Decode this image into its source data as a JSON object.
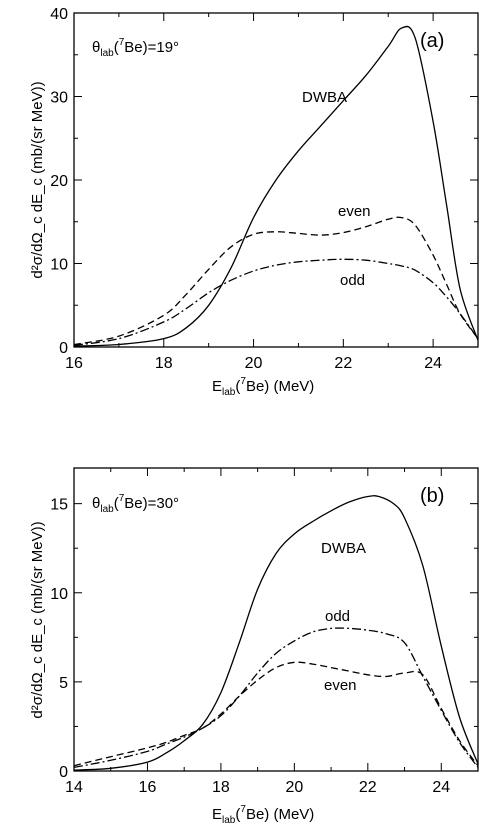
{
  "chart_data": [
    {
      "type": "line",
      "panel_label": "(a)",
      "condition": {
        "main": "θ",
        "sub": "lab",
        "sup": "7",
        "rest": "Be)=19°"
      },
      "xlabel": {
        "main": "E",
        "sub": "lab",
        "sup": "7",
        "rest": "Be)  (MeV)"
      },
      "ylabel": "d²σ/dΩ_c dE_c  (mb/(sr MeV))",
      "xlim": [
        16,
        25
      ],
      "ylim": [
        0,
        40
      ],
      "xticks": [
        16,
        18,
        20,
        22,
        24
      ],
      "yticks": [
        0,
        10,
        20,
        30,
        40
      ],
      "series": [
        {
          "name": "DWBA",
          "style": "solid",
          "x": [
            16,
            17,
            18,
            18.5,
            19,
            19.5,
            20,
            20.5,
            21,
            21.5,
            22,
            22.5,
            23,
            23.3,
            23.6,
            24,
            24.3,
            24.6,
            25
          ],
          "y": [
            0.1,
            0.3,
            1.0,
            2.3,
            5,
            9.5,
            15.5,
            20,
            23.5,
            26.5,
            29.5,
            32.5,
            36,
            38.2,
            37,
            27,
            17,
            7,
            0.8
          ]
        },
        {
          "name": "even",
          "style": "dashed",
          "x": [
            16,
            17,
            18,
            18.5,
            19,
            19.5,
            20,
            20.5,
            21,
            21.5,
            22,
            22.5,
            23,
            23.3,
            23.6,
            24,
            24.3,
            24.6,
            25
          ],
          "y": [
            0.3,
            1.3,
            3.8,
            6.3,
            9.3,
            12,
            13.5,
            13.8,
            13.6,
            13.4,
            13.7,
            14.4,
            15.3,
            15.5,
            14.6,
            11,
            7.5,
            4,
            1
          ]
        },
        {
          "name": "odd",
          "style": "dash-dot",
          "x": [
            16,
            17,
            18,
            18.5,
            19,
            19.5,
            20,
            20.5,
            21,
            21.5,
            22,
            22.5,
            23,
            23.3,
            23.6,
            24,
            24.3,
            24.6,
            25
          ],
          "y": [
            0.2,
            1.0,
            3.0,
            4.6,
            6.5,
            8.0,
            9.1,
            9.8,
            10.2,
            10.4,
            10.5,
            10.4,
            10.0,
            9.7,
            9.2,
            7.7,
            6,
            4,
            1
          ]
        }
      ],
      "annotations": [
        "DWBA",
        "even",
        "odd"
      ]
    },
    {
      "type": "line",
      "panel_label": "(b)",
      "condition": {
        "main": "θ",
        "sub": "lab",
        "sup": "7",
        "rest": "Be)=30°"
      },
      "xlabel": {
        "main": "E",
        "sub": "lab",
        "sup": "7",
        "rest": "Be)  (MeV)"
      },
      "ylabel": "d²σ/dΩ_c dE_c  (mb/(sr MeV))",
      "xlim": [
        14,
        25
      ],
      "ylim": [
        0,
        17
      ],
      "xticks": [
        14,
        16,
        18,
        20,
        22,
        24
      ],
      "yticks": [
        0,
        5,
        10,
        15
      ],
      "series": [
        {
          "name": "DWBA",
          "style": "solid",
          "x": [
            14,
            15,
            16,
            16.5,
            17,
            17.5,
            18,
            18.5,
            19,
            19.5,
            20,
            20.5,
            21,
            21.5,
            22,
            22.3,
            22.7,
            23,
            23.5,
            24,
            24.5,
            25
          ],
          "y": [
            0.05,
            0.15,
            0.5,
            1.0,
            1.7,
            2.6,
            4.4,
            7.2,
            10.2,
            12.2,
            13.3,
            14.0,
            14.6,
            15.1,
            15.4,
            15.4,
            15.0,
            14.2,
            11.5,
            7.0,
            3.0,
            0.4
          ]
        },
        {
          "name": "odd",
          "style": "dash-dot",
          "x": [
            14,
            15,
            16,
            16.5,
            17,
            17.5,
            18,
            18.5,
            19,
            19.5,
            20,
            20.5,
            21,
            21.5,
            22,
            22.5,
            23,
            23.5,
            24,
            24.5,
            25
          ],
          "y": [
            0.2,
            0.6,
            1.1,
            1.5,
            1.9,
            2.4,
            3.1,
            4.2,
            5.5,
            6.6,
            7.3,
            7.8,
            8.0,
            8.0,
            7.9,
            7.7,
            7.2,
            5.3,
            3.4,
            1.6,
            0.2
          ]
        },
        {
          "name": "even",
          "style": "dashed",
          "x": [
            14,
            15,
            16,
            16.5,
            17,
            17.5,
            18,
            18.5,
            19,
            19.5,
            20,
            20.5,
            21,
            21.5,
            22,
            22.5,
            23,
            23.5,
            24,
            24.5,
            25
          ],
          "y": [
            0.3,
            0.8,
            1.3,
            1.6,
            2.0,
            2.4,
            3.2,
            4.2,
            5.1,
            5.8,
            6.1,
            6.0,
            5.8,
            5.6,
            5.4,
            5.3,
            5.5,
            5.4,
            3.5,
            1.7,
            0.3
          ]
        }
      ],
      "annotations": [
        "DWBA",
        "odd",
        "even"
      ]
    }
  ]
}
